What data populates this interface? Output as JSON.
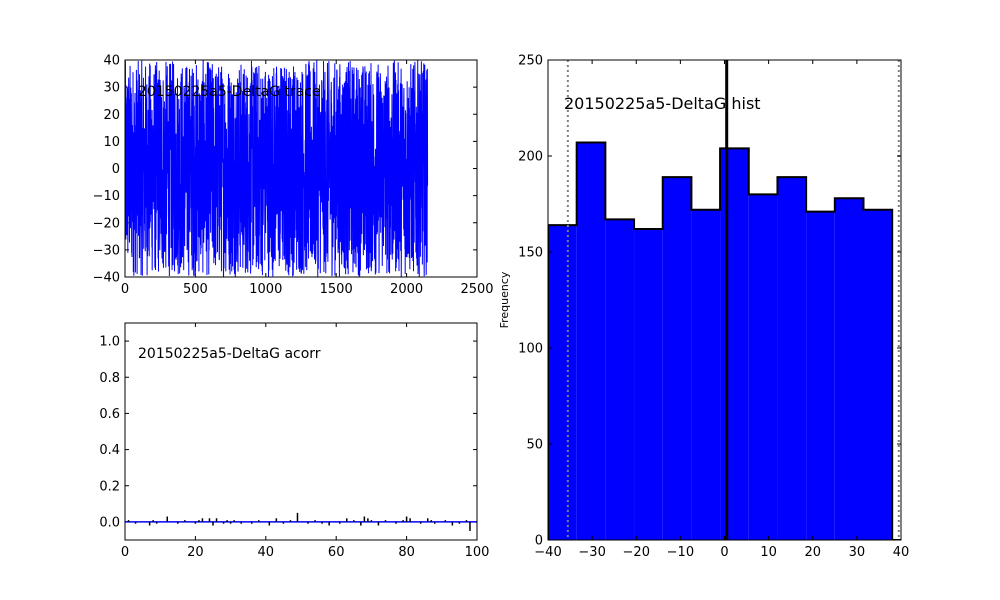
{
  "chart_data": [
    {
      "type": "line",
      "title": "20150225a5-DeltaG trace",
      "xlabel": "",
      "ylabel": "",
      "xlim": [
        0,
        2500
      ],
      "ylim": [
        -40,
        40
      ],
      "xticks": [
        "0",
        "500",
        "1000",
        "1500",
        "2000",
        "2500"
      ],
      "yticks": [
        "−40",
        "−30",
        "−20",
        "−10",
        "0",
        "10",
        "20",
        "30",
        "40"
      ],
      "series": [
        {
          "n_samples": 2150,
          "range": [
            -40,
            40
          ],
          "color": "#0000ff"
        }
      ],
      "grid": false
    },
    {
      "type": "bar",
      "title": "20150225a5-DeltaG acorr",
      "xlabel": "",
      "ylabel": "",
      "xlim": [
        0,
        100
      ],
      "ylim": [
        -0.1,
        1.1
      ],
      "xticks": [
        "0",
        "20",
        "40",
        "60",
        "80",
        "100"
      ],
      "yticks": [
        "0.0",
        "0.2",
        "0.4",
        "0.6",
        "0.8",
        "1.0"
      ],
      "lags": [
        1,
        3,
        7,
        8,
        9,
        12,
        15,
        17,
        20,
        21,
        22,
        24,
        25,
        26,
        28,
        29,
        30,
        31,
        33,
        36,
        38,
        41,
        43,
        45,
        47,
        49,
        52,
        54,
        56,
        58,
        61,
        63,
        65,
        67,
        68,
        69,
        70,
        72,
        74,
        77,
        79,
        80,
        81,
        84,
        86,
        87,
        88,
        91,
        93,
        95,
        97,
        98
      ],
      "values": [
        0.01,
        -0.01,
        -0.02,
        0.01,
        -0.01,
        0.03,
        -0.01,
        0.01,
        -0.01,
        0.01,
        0.02,
        0.02,
        -0.02,
        0.02,
        -0.01,
        0.01,
        -0.01,
        0.01,
        -0.01,
        -0.01,
        0.01,
        -0.02,
        0.02,
        -0.01,
        0.01,
        0.05,
        -0.01,
        0.01,
        -0.01,
        -0.02,
        -0.01,
        0.02,
        0.01,
        -0.02,
        0.03,
        0.02,
        0.01,
        -0.02,
        0.01,
        -0.01,
        0.01,
        0.03,
        0.02,
        -0.01,
        0.02,
        0.01,
        -0.01,
        0.01,
        -0.02,
        -0.01,
        0.01,
        -0.05
      ],
      "baseline": 0,
      "color": "#0000ff",
      "grid": false
    },
    {
      "type": "bar",
      "title": "20150225a5-DeltaG hist",
      "xlabel": "",
      "ylabel": "Frequency",
      "xlim": [
        -40,
        40
      ],
      "ylim": [
        0,
        250
      ],
      "xticks": [
        "−40",
        "−30",
        "−20",
        "−10",
        "0",
        "10",
        "20",
        "30",
        "40"
      ],
      "yticks": [
        "0",
        "50",
        "100",
        "150",
        "200",
        "250"
      ],
      "bin_edges": [
        -40,
        -33.5,
        -27,
        -20.5,
        -14,
        -7.5,
        -1,
        5.5,
        12,
        18.5,
        25,
        31.5,
        38,
        44.5
      ],
      "counts": [
        164,
        207,
        167,
        162,
        189,
        172,
        204,
        180,
        189,
        171,
        178,
        172,
        0
      ],
      "vlines": [
        {
          "x": -35.5,
          "style": "dotted",
          "color": "#808080"
        },
        {
          "x": 0.5,
          "style": "solid",
          "color": "#000000"
        },
        {
          "x": 39.5,
          "style": "dotted",
          "color": "#808080"
        }
      ],
      "color": "#0000ff",
      "grid": false
    }
  ]
}
